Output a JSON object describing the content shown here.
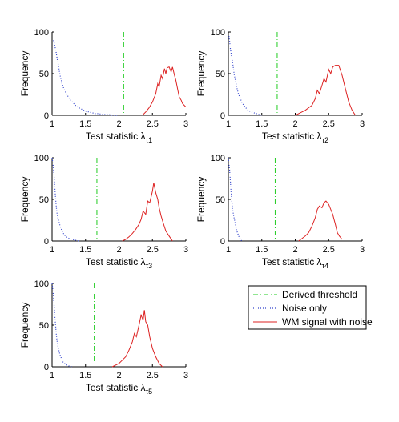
{
  "chart_data": [
    {
      "type": "line",
      "xlabel": "Test statistic λ",
      "xlabel_sub": "τ1",
      "ylabel": "Frequency",
      "xlim": [
        1,
        3
      ],
      "ylim": [
        0,
        100
      ],
      "xticks": [
        "1",
        "1.5",
        "2",
        "2.5",
        "3"
      ],
      "yticks": [
        "0",
        "50",
        "100"
      ],
      "threshold": 2.07,
      "series": [
        {
          "key": "noise",
          "color": "#3344cc",
          "x": [
            1.02,
            1.04,
            1.06,
            1.08,
            1.1,
            1.12,
            1.15,
            1.18,
            1.22,
            1.26,
            1.3,
            1.35,
            1.4,
            1.45,
            1.5,
            1.55,
            1.6,
            1.65,
            1.7,
            1.75,
            1.8,
            1.85,
            1.9,
            1.95,
            2.0
          ],
          "y": [
            90,
            84,
            76,
            66,
            57,
            48,
            38,
            31,
            25,
            20,
            16,
            12,
            9,
            7,
            5,
            4,
            3,
            2,
            2,
            1,
            1,
            1,
            0,
            0,
            0
          ]
        },
        {
          "key": "wm",
          "color": "#dd2222",
          "x": [
            2.35,
            2.4,
            2.45,
            2.5,
            2.55,
            2.58,
            2.6,
            2.63,
            2.65,
            2.68,
            2.7,
            2.72,
            2.75,
            2.78,
            2.8,
            2.83,
            2.85,
            2.88,
            2.9,
            2.93,
            2.95,
            3.0
          ],
          "y": [
            0,
            4,
            9,
            16,
            26,
            38,
            34,
            48,
            44,
            56,
            50,
            57,
            58,
            52,
            58,
            48,
            42,
            30,
            22,
            18,
            14,
            10
          ]
        }
      ]
    },
    {
      "type": "line",
      "xlabel": "Test statistic λ",
      "xlabel_sub": "τ2",
      "ylabel": "Frequency",
      "xlim": [
        1,
        3
      ],
      "ylim": [
        0,
        100
      ],
      "xticks": [
        "1",
        "1.5",
        "2",
        "2.5",
        "3"
      ],
      "yticks": [
        "0",
        "50",
        "100"
      ],
      "threshold": 1.73,
      "series": [
        {
          "key": "noise",
          "color": "#3344cc",
          "x": [
            1.01,
            1.02,
            1.03,
            1.05,
            1.07,
            1.09,
            1.11,
            1.13,
            1.15,
            1.18,
            1.2,
            1.23,
            1.26,
            1.3,
            1.34,
            1.38,
            1.42,
            1.46,
            1.5
          ],
          "y": [
            95,
            88,
            80,
            70,
            60,
            48,
            40,
            32,
            26,
            20,
            16,
            12,
            9,
            6,
            4,
            3,
            2,
            1,
            0
          ]
        },
        {
          "key": "wm",
          "color": "#dd2222",
          "x": [
            2.0,
            2.05,
            2.1,
            2.15,
            2.2,
            2.25,
            2.3,
            2.33,
            2.36,
            2.4,
            2.43,
            2.46,
            2.5,
            2.53,
            2.56,
            2.6,
            2.65,
            2.7,
            2.75,
            2.8,
            2.85,
            2.9
          ],
          "y": [
            0,
            2,
            4,
            6,
            9,
            12,
            20,
            30,
            26,
            36,
            44,
            40,
            55,
            50,
            58,
            60,
            60,
            48,
            32,
            16,
            6,
            0
          ]
        }
      ]
    },
    {
      "type": "line",
      "xlabel": "Test statistic λ",
      "xlabel_sub": "τ3",
      "ylabel": "Frequency",
      "xlim": [
        1,
        3
      ],
      "ylim": [
        0,
        100
      ],
      "xticks": [
        "1",
        "1.5",
        "2",
        "2.5",
        "3"
      ],
      "yticks": [
        "0",
        "50",
        "100"
      ],
      "threshold": 1.67,
      "series": [
        {
          "key": "noise",
          "color": "#3344cc",
          "x": [
            1.0,
            1.01,
            1.02,
            1.03,
            1.04,
            1.05,
            1.06,
            1.07,
            1.08,
            1.1,
            1.12,
            1.14,
            1.16,
            1.18,
            1.2,
            1.23,
            1.26,
            1.3,
            1.35,
            1.4
          ],
          "y": [
            100,
            95,
            88,
            78,
            66,
            54,
            44,
            36,
            30,
            24,
            18,
            14,
            10,
            8,
            6,
            4,
            3,
            2,
            1,
            0
          ]
        },
        {
          "key": "wm",
          "color": "#dd2222",
          "x": [
            2.05,
            2.1,
            2.15,
            2.2,
            2.25,
            2.3,
            2.33,
            2.36,
            2.4,
            2.43,
            2.46,
            2.5,
            2.52,
            2.55,
            2.58,
            2.6,
            2.63,
            2.66,
            2.7,
            2.75,
            2.8
          ],
          "y": [
            0,
            2,
            5,
            9,
            14,
            20,
            26,
            36,
            32,
            48,
            46,
            60,
            70,
            58,
            50,
            40,
            30,
            22,
            12,
            6,
            0
          ]
        }
      ]
    },
    {
      "type": "line",
      "xlabel": "Test statistic λ",
      "xlabel_sub": "τ4",
      "ylabel": "Frequency",
      "xlim": [
        1,
        3
      ],
      "ylim": [
        0,
        100
      ],
      "xticks": [
        "1",
        "1.5",
        "2",
        "2.5",
        "3"
      ],
      "yticks": [
        "0",
        "50",
        "100"
      ],
      "threshold": 1.7,
      "series": [
        {
          "key": "noise",
          "color": "#3344cc",
          "x": [
            1.0,
            1.01,
            1.02,
            1.03,
            1.04,
            1.05,
            1.06,
            1.08,
            1.1,
            1.12,
            1.14,
            1.16,
            1.18,
            1.2
          ],
          "y": [
            100,
            92,
            84,
            72,
            60,
            50,
            40,
            30,
            22,
            14,
            9,
            5,
            2,
            0
          ]
        },
        {
          "key": "wm",
          "color": "#dd2222",
          "x": [
            2.05,
            2.1,
            2.15,
            2.2,
            2.25,
            2.3,
            2.33,
            2.36,
            2.4,
            2.43,
            2.46,
            2.5,
            2.53,
            2.56,
            2.6,
            2.63,
            2.66,
            2.7
          ],
          "y": [
            0,
            3,
            6,
            10,
            18,
            28,
            38,
            42,
            40,
            46,
            48,
            44,
            38,
            32,
            20,
            10,
            6,
            2
          ]
        }
      ]
    },
    {
      "type": "line",
      "xlabel": "Test statistic λ",
      "xlabel_sub": "τ5",
      "ylabel": "Frequency",
      "xlim": [
        1,
        3
      ],
      "ylim": [
        0,
        100
      ],
      "xticks": [
        "1",
        "1.5",
        "2",
        "2.5",
        "3"
      ],
      "yticks": [
        "0",
        "50",
        "100"
      ],
      "threshold": 1.63,
      "series": [
        {
          "key": "noise",
          "color": "#3344cc",
          "x": [
            1.0,
            1.01,
            1.02,
            1.03,
            1.04,
            1.05,
            1.06,
            1.07,
            1.08,
            1.1,
            1.12,
            1.14,
            1.16,
            1.2,
            1.25,
            1.3
          ],
          "y": [
            100,
            94,
            86,
            74,
            62,
            52,
            42,
            34,
            28,
            20,
            14,
            10,
            6,
            3,
            1,
            0
          ]
        },
        {
          "key": "wm",
          "color": "#dd2222",
          "x": [
            1.9,
            1.95,
            2.0,
            2.05,
            2.1,
            2.15,
            2.2,
            2.23,
            2.26,
            2.3,
            2.33,
            2.36,
            2.38,
            2.4,
            2.43,
            2.46,
            2.5,
            2.55,
            2.6,
            2.65
          ],
          "y": [
            0,
            2,
            4,
            8,
            12,
            20,
            30,
            40,
            36,
            50,
            62,
            56,
            68,
            54,
            50,
            36,
            22,
            12,
            4,
            0
          ]
        }
      ]
    }
  ],
  "legend": {
    "placement": "bottom-right",
    "items": [
      {
        "key": "threshold",
        "label": "Derived threshold",
        "color": "#22cc22",
        "dash": "dash-dot"
      },
      {
        "key": "noise",
        "label": "Noise only",
        "color": "#3344cc",
        "dash": "dotted"
      },
      {
        "key": "wm",
        "label": "WM signal with noise",
        "color": "#dd2222",
        "dash": "solid"
      }
    ]
  }
}
